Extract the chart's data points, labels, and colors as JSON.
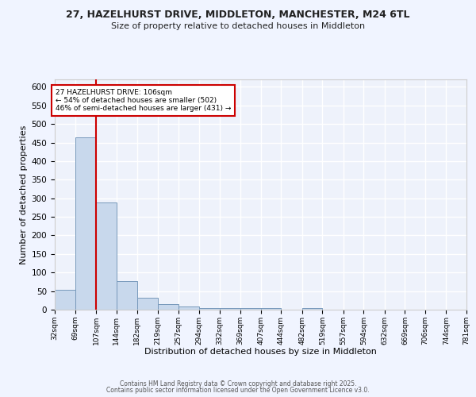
{
  "title_line1": "27, HAZELHURST DRIVE, MIDDLETON, MANCHESTER, M24 6TL",
  "title_line2": "Size of property relative to detached houses in Middleton",
  "xlabel": "Distribution of detached houses by size in Middleton",
  "ylabel": "Number of detached properties",
  "bar_color": "#c8d8ec",
  "bar_edge_color": "#7799bb",
  "background_color": "#eef2fb",
  "grid_color": "#ffffff",
  "red_line_x": 107,
  "red_line_color": "#cc0000",
  "annotation_title": "27 HAZELHURST DRIVE: 106sqm",
  "annotation_line1": "← 54% of detached houses are smaller (502)",
  "annotation_line2": "46% of semi-detached houses are larger (431) →",
  "annotation_box_color": "#ffffff",
  "annotation_box_edge": "#cc0000",
  "bin_edges": [
    32,
    69,
    107,
    144,
    182,
    219,
    257,
    294,
    332,
    369,
    407,
    444,
    482,
    519,
    557,
    594,
    632,
    669,
    706,
    744,
    781
  ],
  "bar_heights": [
    53,
    463,
    288,
    78,
    32,
    16,
    8,
    5,
    4,
    5,
    4,
    0,
    4,
    0,
    0,
    0,
    0,
    0,
    0,
    0
  ],
  "ylim": [
    0,
    620
  ],
  "yticks": [
    0,
    50,
    100,
    150,
    200,
    250,
    300,
    350,
    400,
    450,
    500,
    550,
    600
  ],
  "tick_labels": [
    "32sqm",
    "69sqm",
    "107sqm",
    "144sqm",
    "182sqm",
    "219sqm",
    "257sqm",
    "294sqm",
    "332sqm",
    "369sqm",
    "407sqm",
    "444sqm",
    "482sqm",
    "519sqm",
    "557sqm",
    "594sqm",
    "632sqm",
    "669sqm",
    "706sqm",
    "744sqm",
    "781sqm"
  ],
  "footer_line1": "Contains HM Land Registry data © Crown copyright and database right 2025.",
  "footer_line2": "Contains public sector information licensed under the Open Government Licence v3.0."
}
